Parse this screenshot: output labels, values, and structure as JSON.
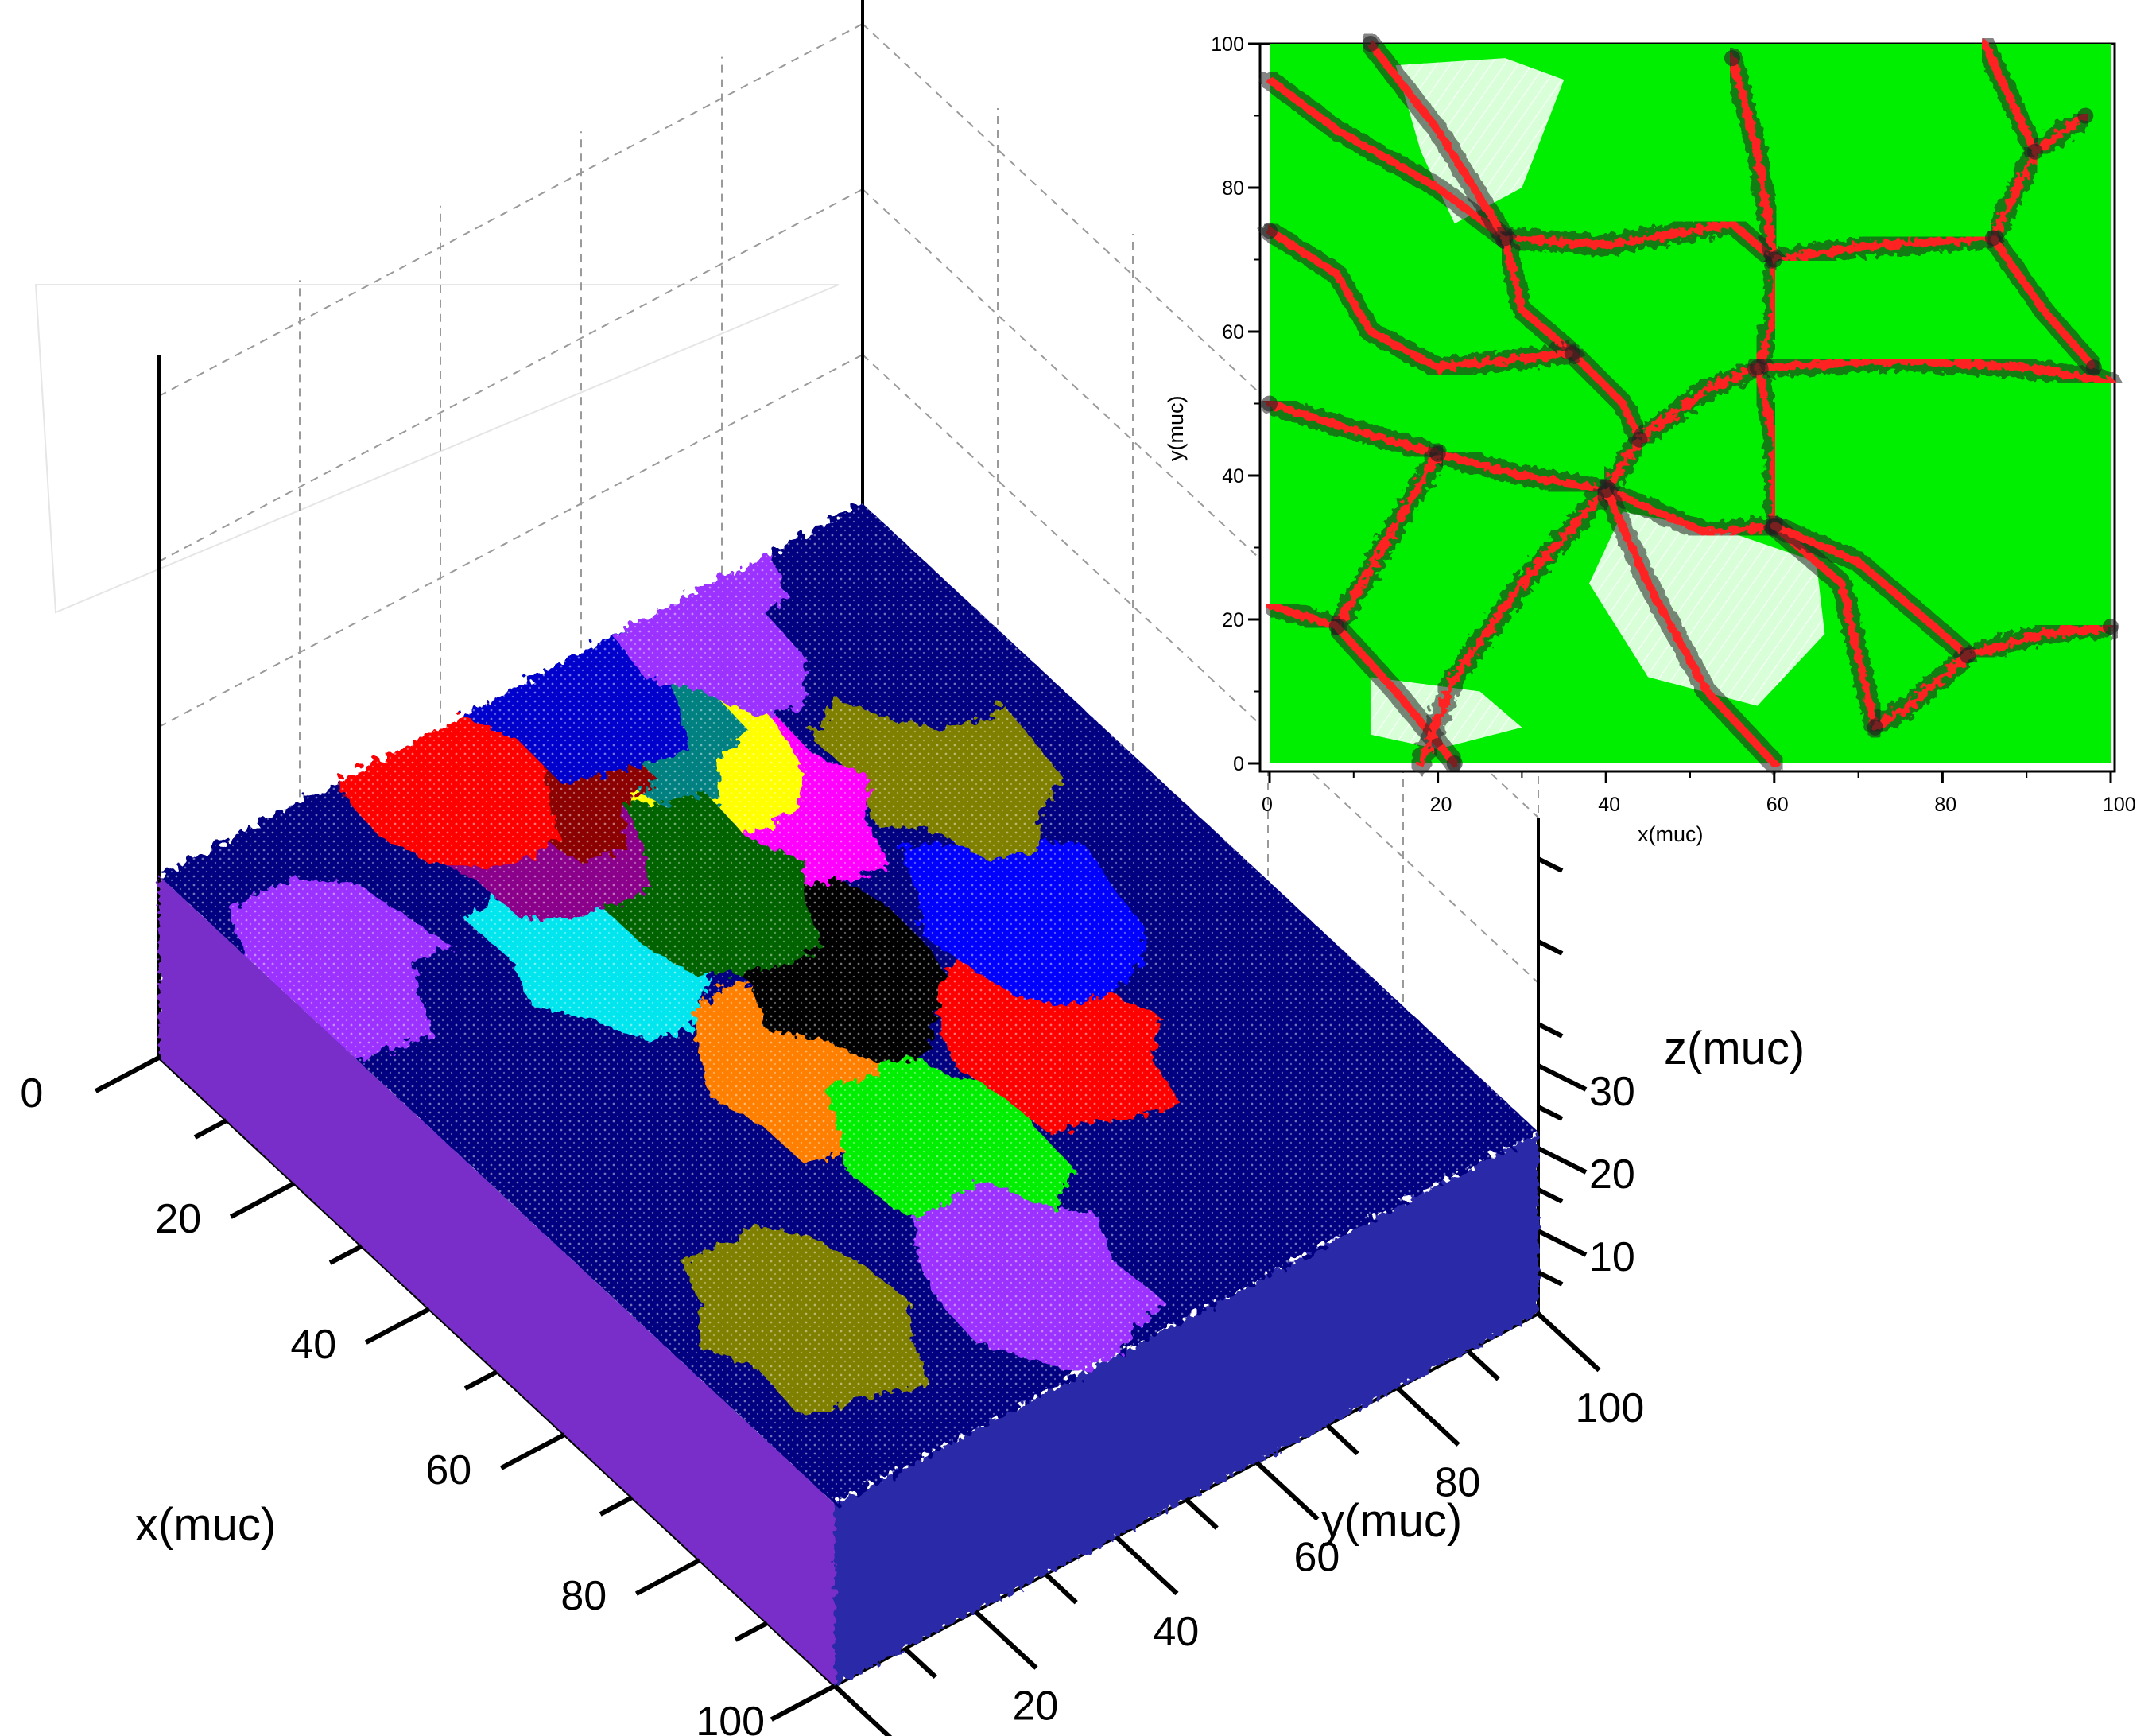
{
  "chart_data": [
    {
      "type": "scatter",
      "title": "",
      "xlabel": "x(muc)",
      "ylabel": "y(muc)",
      "zlabel": "z(muc)",
      "projection": "3d",
      "xlim": [
        0,
        100
      ],
      "ylim": [
        0,
        100
      ],
      "zlim": [
        0,
        40
      ],
      "x_ticks": [
        "0",
        "20",
        "40",
        "60",
        "80",
        "100"
      ],
      "y_ticks": [
        "0",
        "20",
        "40",
        "60",
        "80",
        "100"
      ],
      "z_ticks": [
        "10",
        "20",
        "30"
      ],
      "grid": true,
      "grains": [
        {
          "color": "#9b30ff",
          "x_center": 20,
          "y_center": 8
        },
        {
          "color": "#000080",
          "x_center": 35,
          "y_center": 20
        },
        {
          "color": "#00e5ee",
          "x_center": 30,
          "y_center": 33
        },
        {
          "color": "#ff7f00",
          "x_center": 55,
          "y_center": 40
        },
        {
          "color": "#00ee00",
          "x_center": 70,
          "y_center": 45
        },
        {
          "color": "#000000",
          "x_center": 45,
          "y_center": 52
        },
        {
          "color": "#ff0000",
          "x_center": 65,
          "y_center": 65
        },
        {
          "color": "#0000ff",
          "x_center": 50,
          "y_center": 75
        },
        {
          "color": "#808000",
          "x_center": 30,
          "y_center": 82
        },
        {
          "color": "#ff00ff",
          "x_center": 25,
          "y_center": 62
        },
        {
          "color": "#ffff00",
          "x_center": 15,
          "y_center": 60
        },
        {
          "color": "#008080",
          "x_center": 8,
          "y_center": 58
        },
        {
          "color": "#006400",
          "x_center": 30,
          "y_center": 48
        },
        {
          "color": "#8b008b",
          "x_center": 15,
          "y_center": 38
        },
        {
          "color": "#8b0000",
          "x_center": 8,
          "y_center": 45
        },
        {
          "color": "#ff0000",
          "x_center": 5,
          "y_center": 35
        },
        {
          "color": "#0000cd",
          "x_center": 3,
          "y_center": 55
        },
        {
          "color": "#9b30ff",
          "x_center": 3,
          "y_center": 75
        },
        {
          "color": "#000080",
          "x_center": 15,
          "y_center": 90
        },
        {
          "color": "#808000",
          "x_center": 80,
          "y_center": 15
        },
        {
          "color": "#9b30ff",
          "x_center": 88,
          "y_center": 40
        }
      ]
    },
    {
      "type": "scatter",
      "title": "",
      "xlabel": "x(muc)",
      "ylabel": "y(muc)",
      "xlim": [
        0,
        100
      ],
      "ylim": [
        0,
        100
      ],
      "x_ticks": [
        "0",
        "20",
        "40",
        "60",
        "80",
        "100"
      ],
      "y_ticks": [
        "0",
        "20",
        "40",
        "60",
        "80",
        "100"
      ],
      "colors": {
        "grain": "#00ee00",
        "boundary": "#ff2020",
        "defect": "#202020"
      },
      "junctions": [
        [
          12,
          100
        ],
        [
          28,
          73
        ],
        [
          36,
          57
        ],
        [
          20,
          43
        ],
        [
          40,
          38
        ],
        [
          44,
          45
        ],
        [
          58,
          55
        ],
        [
          60,
          33
        ],
        [
          60,
          70
        ],
        [
          55,
          98
        ],
        [
          72,
          5
        ],
        [
          83,
          15
        ],
        [
          86,
          73
        ],
        [
          91,
          85
        ],
        [
          97,
          90
        ],
        [
          98,
          55
        ],
        [
          100,
          19
        ],
        [
          8,
          19
        ],
        [
          0,
          50
        ],
        [
          0,
          74
        ],
        [
          22,
          0
        ]
      ],
      "boundaries": [
        [
          [
            0,
            95
          ],
          [
            8,
            88
          ],
          [
            20,
            80
          ],
          [
            28,
            73
          ]
        ],
        [
          [
            12,
            100
          ],
          [
            20,
            88
          ],
          [
            28,
            73
          ]
        ],
        [
          [
            28,
            73
          ],
          [
            40,
            72
          ],
          [
            55,
            75
          ],
          [
            60,
            70
          ]
        ],
        [
          [
            28,
            73
          ],
          [
            30,
            63
          ],
          [
            36,
            57
          ]
        ],
        [
          [
            36,
            57
          ],
          [
            42,
            50
          ],
          [
            44,
            45
          ]
        ],
        [
          [
            44,
            45
          ],
          [
            52,
            52
          ],
          [
            58,
            55
          ]
        ],
        [
          [
            58,
            55
          ],
          [
            60,
            62
          ],
          [
            60,
            70
          ]
        ],
        [
          [
            60,
            70
          ],
          [
            58,
            85
          ],
          [
            55,
            98
          ]
        ],
        [
          [
            60,
            70
          ],
          [
            72,
            72
          ],
          [
            86,
            73
          ]
        ],
        [
          [
            86,
            73
          ],
          [
            91,
            85
          ]
        ],
        [
          [
            91,
            85
          ],
          [
            97,
            90
          ]
        ],
        [
          [
            91,
            85
          ],
          [
            85,
            100
          ]
        ],
        [
          [
            86,
            73
          ],
          [
            92,
            63
          ],
          [
            98,
            55
          ]
        ],
        [
          [
            58,
            55
          ],
          [
            75,
            56
          ],
          [
            90,
            55
          ],
          [
            100,
            53
          ]
        ],
        [
          [
            0,
            74
          ],
          [
            8,
            68
          ],
          [
            12,
            60
          ],
          [
            20,
            55
          ],
          [
            36,
            57
          ]
        ],
        [
          [
            0,
            50
          ],
          [
            8,
            47
          ],
          [
            20,
            43
          ]
        ],
        [
          [
            20,
            43
          ],
          [
            30,
            40
          ],
          [
            40,
            38
          ]
        ],
        [
          [
            40,
            38
          ],
          [
            44,
            45
          ]
        ],
        [
          [
            40,
            38
          ],
          [
            52,
            32
          ],
          [
            60,
            33
          ]
        ],
        [
          [
            60,
            33
          ],
          [
            60,
            45
          ],
          [
            58,
            55
          ]
        ],
        [
          [
            60,
            33
          ],
          [
            68,
            25
          ],
          [
            72,
            5
          ]
        ],
        [
          [
            60,
            33
          ],
          [
            70,
            28
          ],
          [
            83,
            15
          ]
        ],
        [
          [
            83,
            15
          ],
          [
            92,
            18
          ],
          [
            100,
            19
          ]
        ],
        [
          [
            83,
            15
          ],
          [
            76,
            8
          ],
          [
            72,
            5
          ]
        ],
        [
          [
            8,
            19
          ],
          [
            20,
            43
          ]
        ],
        [
          [
            8,
            19
          ],
          [
            15,
            10
          ],
          [
            22,
            0
          ]
        ],
        [
          [
            0,
            22
          ],
          [
            8,
            19
          ]
        ],
        [
          [
            40,
            38
          ],
          [
            30,
            25
          ],
          [
            22,
            12
          ],
          [
            18,
            0
          ]
        ],
        [
          [
            40,
            38
          ],
          [
            45,
            25
          ],
          [
            52,
            10
          ],
          [
            60,
            0
          ]
        ]
      ],
      "striped_grains": [
        {
          "color": "#d8ffd8",
          "polygon": [
            [
              15,
              97
            ],
            [
              28,
              98
            ],
            [
              35,
              95
            ],
            [
              30,
              80
            ],
            [
              22,
              75
            ],
            [
              18,
              85
            ]
          ]
        },
        {
          "color": "#d8ffd8",
          "polygon": [
            [
              42,
              35
            ],
            [
              55,
              32
            ],
            [
              65,
              28
            ],
            [
              66,
              18
            ],
            [
              58,
              8
            ],
            [
              45,
              12
            ],
            [
              38,
              25
            ]
          ]
        },
        {
          "color": "#d8ffd8",
          "polygon": [
            [
              12,
              12
            ],
            [
              25,
              10
            ],
            [
              30,
              5
            ],
            [
              20,
              2
            ],
            [
              12,
              4
            ]
          ]
        }
      ]
    }
  ]
}
